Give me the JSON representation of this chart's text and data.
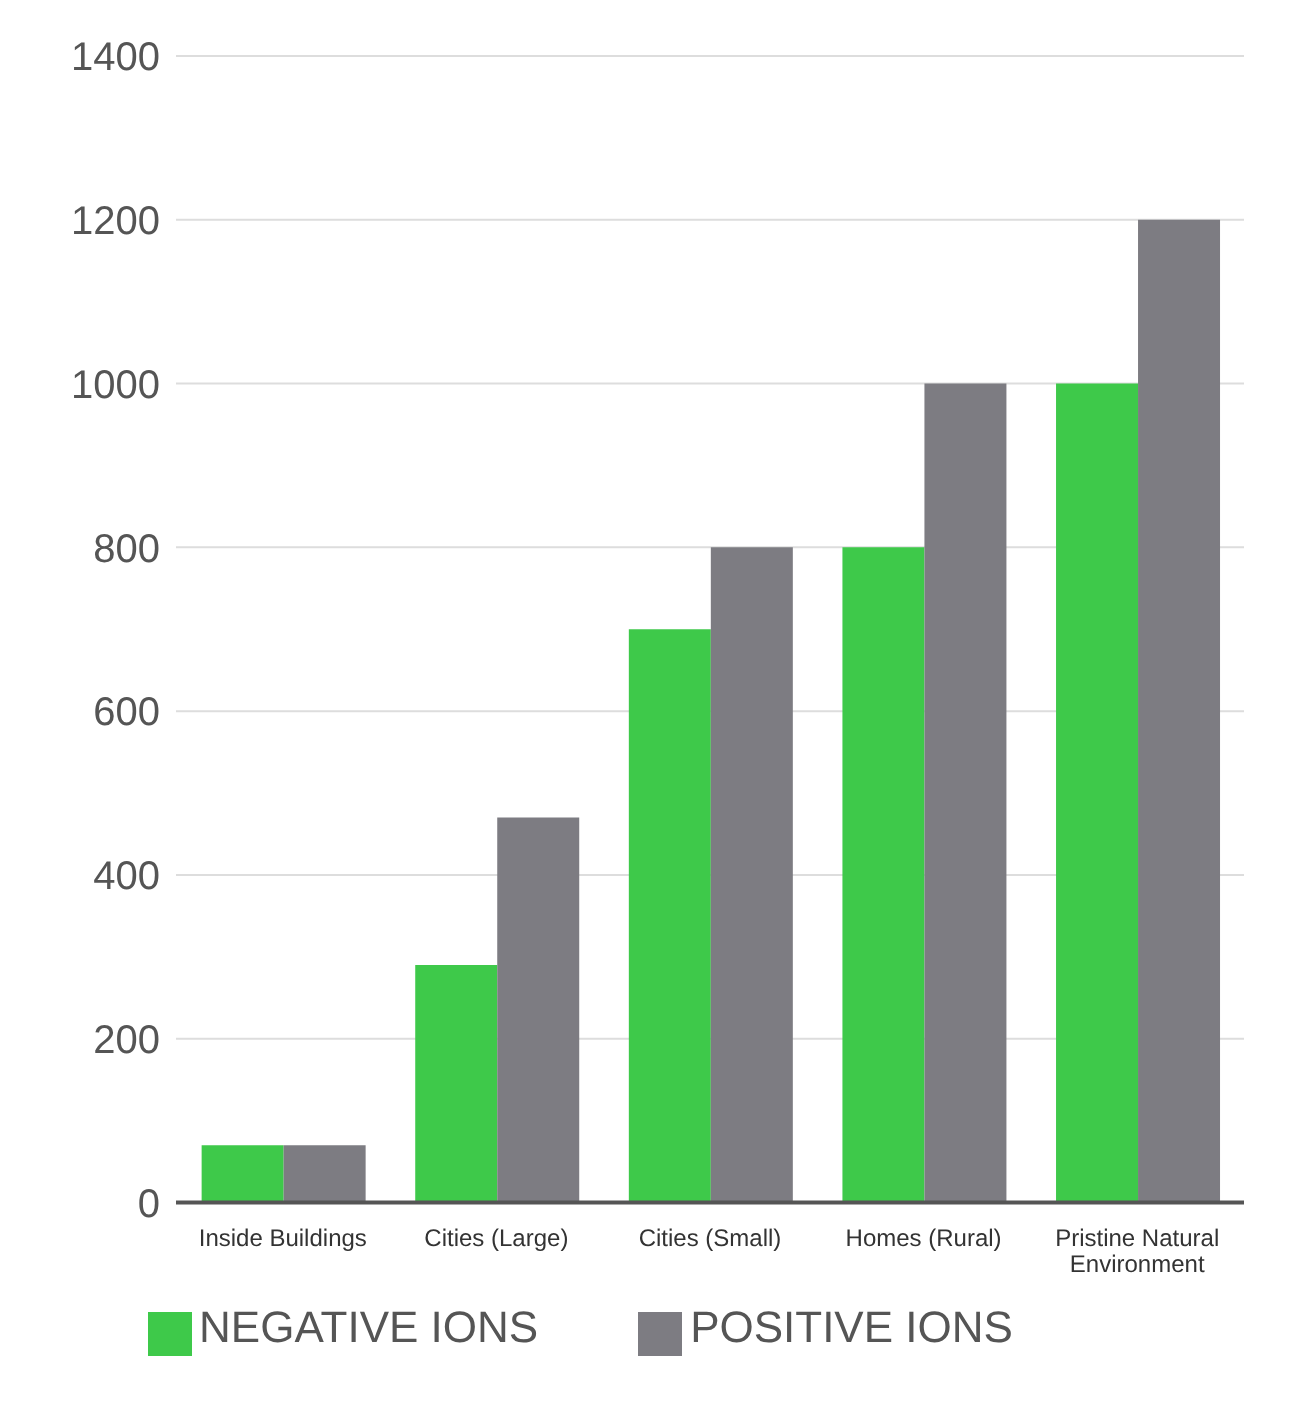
{
  "chart_data": {
    "type": "bar",
    "categories": [
      "Inside Buildings",
      "Cities (Large)",
      "Cities (Small)",
      "Homes (Rural)",
      "Pristine Natural Environment"
    ],
    "series": [
      {
        "name": "NEGATIVE IONS",
        "color": "#3ec94a",
        "values": [
          70,
          290,
          700,
          800,
          1000
        ]
      },
      {
        "name": "POSITIVE IONS",
        "color": "#7d7c82",
        "values": [
          70,
          470,
          800,
          1000,
          1200
        ]
      }
    ],
    "ylim": [
      0,
      1400
    ],
    "yticks": [
      0,
      200,
      400,
      600,
      800,
      1000,
      1200,
      1400
    ],
    "grid": "y",
    "legend": "bottom"
  }
}
